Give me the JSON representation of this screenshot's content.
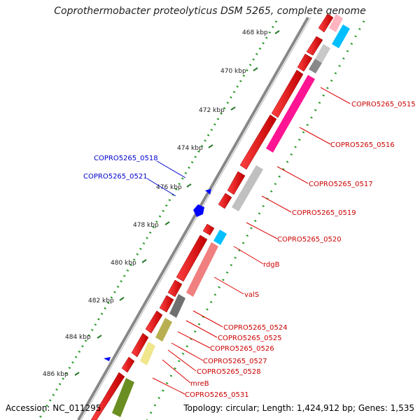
{
  "title": "Coprothermobacter proteolyticus DSM 5265, complete genome",
  "footer": {
    "accession": "Accession: NC_011295",
    "topology": "Topology: circular; Length: 1,424,912 bp; Genes: 1,535"
  },
  "ticks": [
    {
      "label": "468 kbp"
    },
    {
      "label": "470 kbp"
    },
    {
      "label": "472 kbp"
    },
    {
      "label": "474 kbp"
    },
    {
      "label": "476 kbp"
    },
    {
      "label": "478 kbp"
    },
    {
      "label": "480 kbp"
    },
    {
      "label": "482 kbp"
    },
    {
      "label": "484 kbp"
    },
    {
      "label": "486 kbp"
    }
  ],
  "labels_blue": [
    {
      "text": "COPRO5265_0518"
    },
    {
      "text": "COPRO5265_0521"
    }
  ],
  "labels_red": [
    {
      "text": "COPRO5265_0515"
    },
    {
      "text": "COPRO5265_0516"
    },
    {
      "text": "COPRO5265_0517"
    },
    {
      "text": "COPRO5265_0519"
    },
    {
      "text": "COPRO5265_0520"
    },
    {
      "text": "rdgB"
    },
    {
      "text": "valS"
    },
    {
      "text": "COPRO5265_0524"
    },
    {
      "text": "COPRO5265_0525"
    },
    {
      "text": "COPRO5265_0526"
    },
    {
      "text": "COPRO5265_0527"
    },
    {
      "text": "COPRO5265_0528"
    },
    {
      "text": "mreB"
    },
    {
      "text": "COPRO5265_0531"
    }
  ],
  "colors": {
    "cds": "#ff0000",
    "trna": "#0000ff",
    "backbone": "#888888",
    "gc_dots": "#2a9a2a"
  }
}
